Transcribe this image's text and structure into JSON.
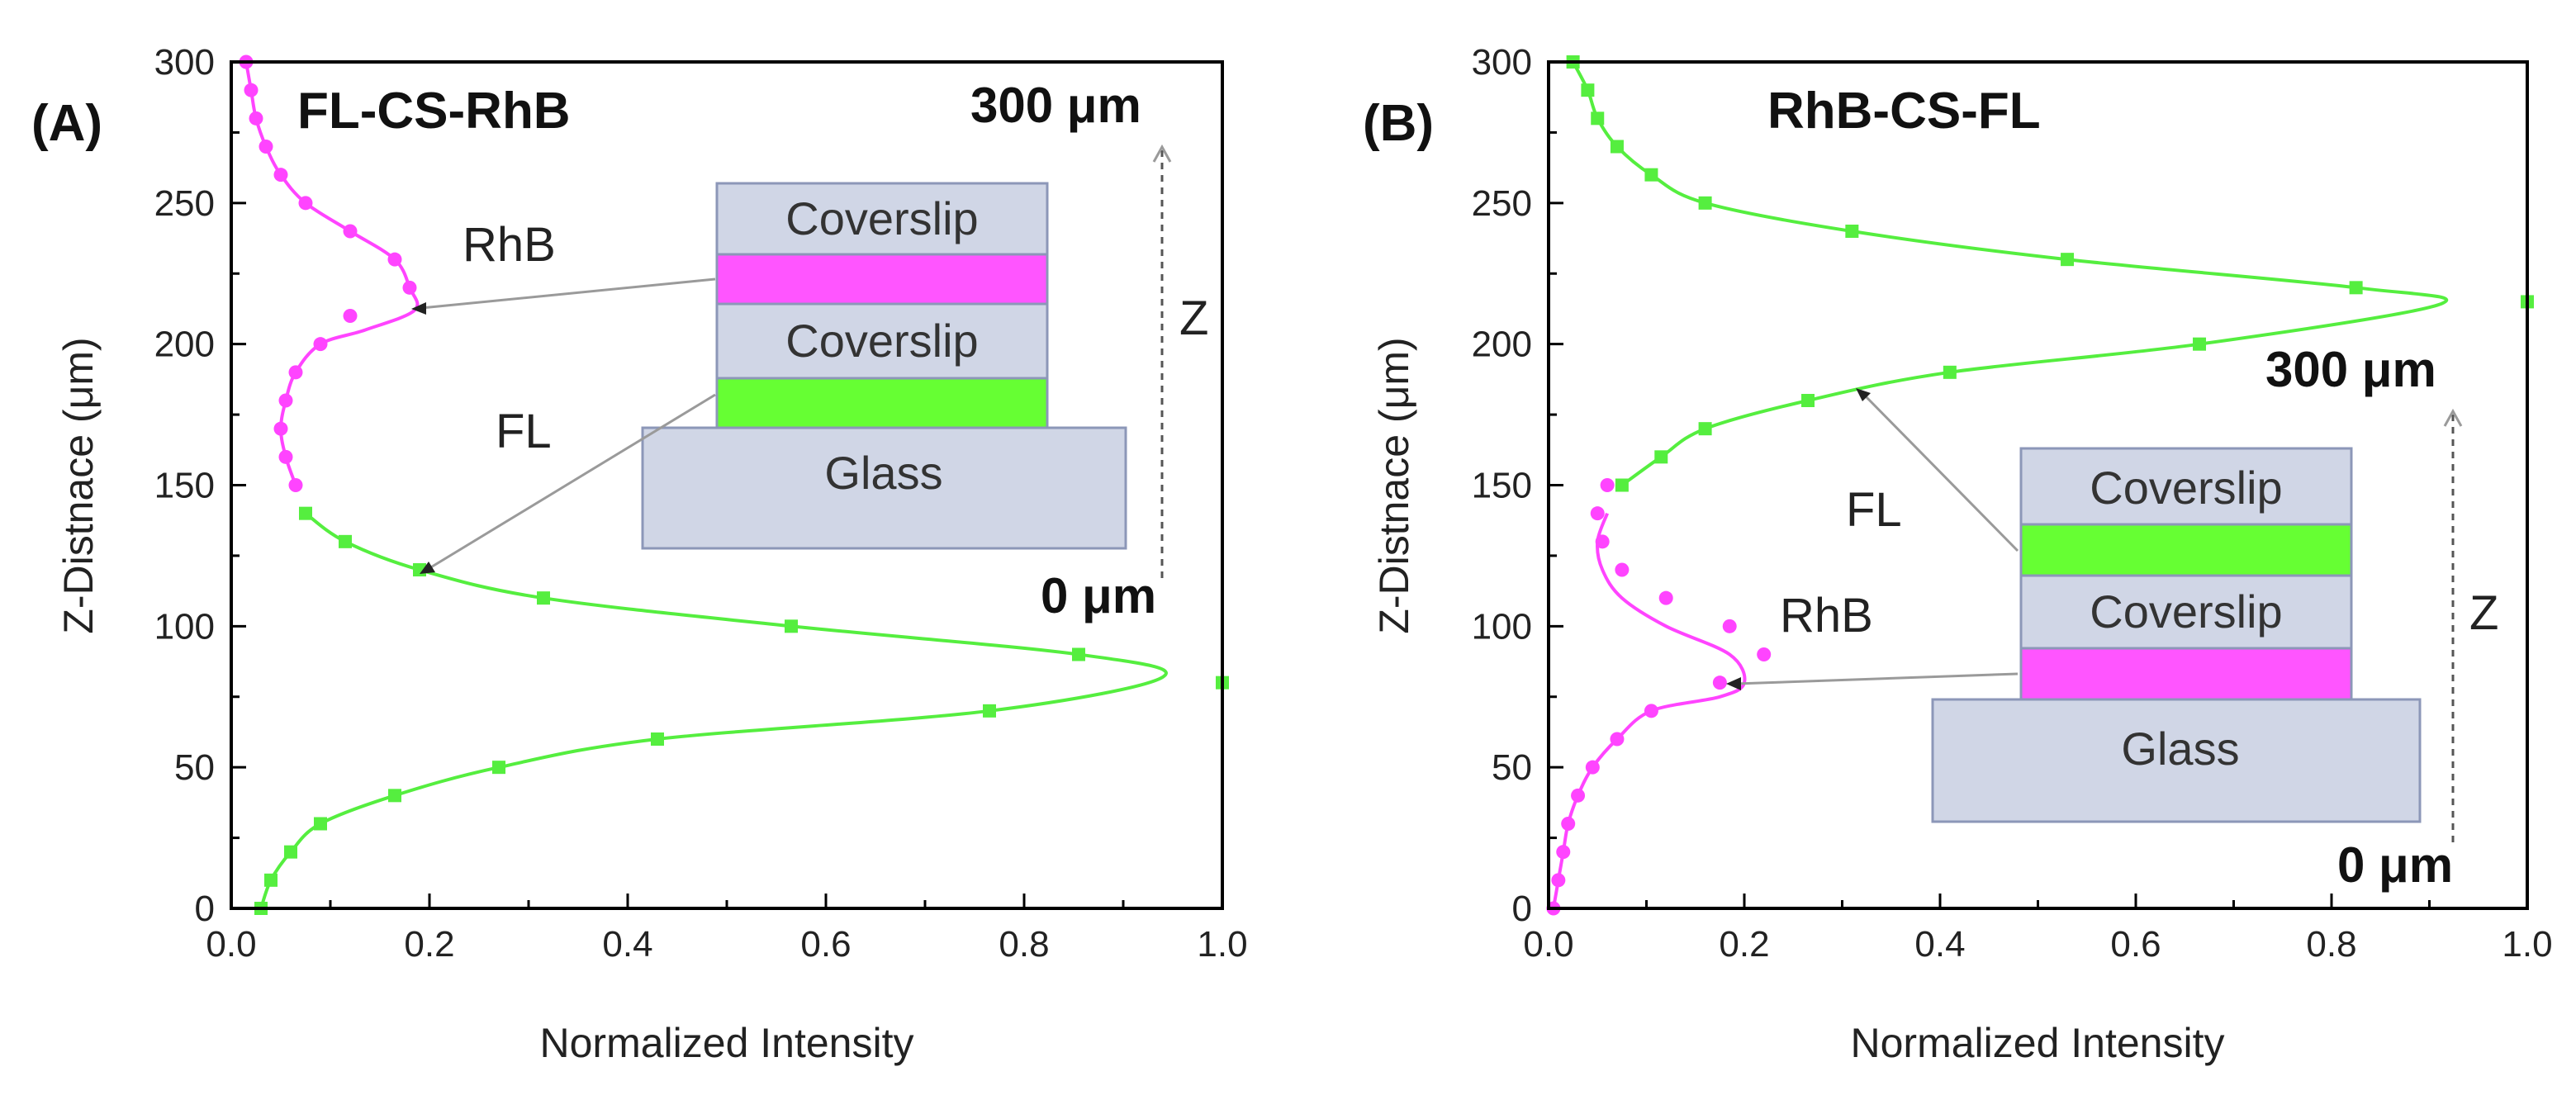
{
  "colors": {
    "fl": "#55ee3f",
    "rhb": "#ff44ff",
    "layer_fill": "#d0d6e6",
    "fl_layer": "#66ff33",
    "rhb_layer": "#ff55ff"
  },
  "chart_data": [
    {
      "type": "line",
      "panel_label": "(A)",
      "title": "FL-CS-RhB",
      "xlabel": "Normalized Intensity",
      "ylabel": "Z-Distnace (μm)",
      "xlim": [
        0,
        1
      ],
      "ylim": [
        0,
        300
      ],
      "xticks": [
        0,
        0.2,
        0.4,
        0.6,
        0.8,
        1.0
      ],
      "xtick_labels": [
        "0.0",
        "0.2",
        "0.4",
        "0.6",
        "0.8",
        "1.0"
      ],
      "yticks": [
        0,
        50,
        100,
        150,
        200,
        250,
        300
      ],
      "ytick_labels": [
        "0",
        "50",
        "100",
        "150",
        "200",
        "250",
        "300"
      ],
      "series": [
        {
          "name": "FL",
          "color": "#55ee3f",
          "marker": "square",
          "x": [
            0.03,
            0.04,
            0.06,
            0.09,
            0.165,
            0.27,
            0.43,
            0.765,
            1.0,
            0.855,
            0.565,
            0.315,
            0.19,
            0.115,
            0.075
          ],
          "y": [
            0,
            10,
            20,
            30,
            40,
            50,
            60,
            70,
            80,
            90,
            100,
            110,
            120,
            130,
            140
          ],
          "fit_x": [
            0.03,
            0.04,
            0.06,
            0.09,
            0.165,
            0.27,
            0.43,
            0.765,
            0.94,
            0.855,
            0.565,
            0.315,
            0.19,
            0.115,
            0.075
          ],
          "fit_y": [
            0,
            10,
            20,
            30,
            40,
            50,
            60,
            70,
            82,
            90,
            100,
            110,
            120,
            130,
            140
          ]
        },
        {
          "name": "RhB",
          "color": "#ff44ff",
          "marker": "circle",
          "x": [
            0.065,
            0.055,
            0.05,
            0.055,
            0.065,
            0.09,
            0.12,
            0.18,
            0.165,
            0.12,
            0.075,
            0.05,
            0.035,
            0.025,
            0.02,
            0.015
          ],
          "y": [
            150,
            160,
            170,
            180,
            190,
            200,
            210,
            220,
            230,
            240,
            250,
            260,
            270,
            280,
            290,
            300
          ],
          "fit_x": [
            0.065,
            0.055,
            0.05,
            0.055,
            0.065,
            0.09,
            0.135,
            0.185,
            0.18,
            0.165,
            0.12,
            0.075,
            0.05,
            0.035,
            0.025,
            0.02,
            0.015
          ],
          "fit_y": [
            150,
            160,
            170,
            180,
            190,
            200,
            205,
            212,
            220,
            230,
            240,
            250,
            260,
            270,
            280,
            290,
            300
          ]
        }
      ],
      "annotations": {
        "top_mark": "300 μm",
        "bottom_mark": "0 μm",
        "z_label": "Z",
        "rhb_label": "RhB",
        "fl_label": "FL",
        "layers": [
          "Coverslip",
          "",
          "Coverslip",
          "",
          "Glass"
        ]
      }
    },
    {
      "type": "line",
      "panel_label": "(B)",
      "title": "RhB-CS-FL",
      "xlabel": "Normalized Intensity",
      "ylabel": "Z-Distnace (μm)",
      "xlim": [
        0,
        1
      ],
      "ylim": [
        0,
        300
      ],
      "xticks": [
        0,
        0.2,
        0.4,
        0.6,
        0.8,
        1.0
      ],
      "xtick_labels": [
        "0.0",
        "0.2",
        "0.4",
        "0.6",
        "0.8",
        "1.0"
      ],
      "yticks": [
        0,
        50,
        100,
        150,
        200,
        250,
        300
      ],
      "ytick_labels": [
        "0",
        "50",
        "100",
        "150",
        "200",
        "250",
        "300"
      ],
      "series": [
        {
          "name": "RhB",
          "color": "#ff44ff",
          "marker": "circle",
          "x": [
            0.005,
            0.01,
            0.015,
            0.02,
            0.03,
            0.045,
            0.07,
            0.105,
            0.175,
            0.22,
            0.185,
            0.12,
            0.075,
            0.055,
            0.05,
            0.06
          ],
          "y": [
            0,
            10,
            20,
            30,
            40,
            50,
            60,
            70,
            80,
            90,
            100,
            110,
            120,
            130,
            140,
            150
          ],
          "fit_x": [
            0.005,
            0.01,
            0.015,
            0.02,
            0.03,
            0.045,
            0.07,
            0.105,
            0.175,
            0.2,
            0.185,
            0.12,
            0.075,
            0.055,
            0.05,
            0.06
          ],
          "fit_y": [
            0,
            10,
            20,
            30,
            40,
            50,
            60,
            70,
            75,
            80,
            90,
            100,
            110,
            120,
            130,
            140
          ]
        },
        {
          "name": "FL",
          "color": "#55ee3f",
          "marker": "square",
          "x": [
            0.075,
            0.115,
            0.16,
            0.265,
            0.41,
            0.665,
            1.0,
            0.825,
            0.53,
            0.31,
            0.16,
            0.105,
            0.07,
            0.05,
            0.04,
            0.025
          ],
          "y": [
            150,
            160,
            170,
            180,
            190,
            200,
            215,
            220,
            230,
            240,
            250,
            260,
            270,
            280,
            290,
            300
          ],
          "fit_x": [
            0.075,
            0.115,
            0.16,
            0.265,
            0.41,
            0.665,
            0.91,
            0.825,
            0.53,
            0.31,
            0.16,
            0.105,
            0.07,
            0.05,
            0.04,
            0.025
          ],
          "fit_y": [
            150,
            160,
            170,
            180,
            190,
            200,
            214,
            220,
            230,
            240,
            250,
            260,
            270,
            280,
            290,
            300
          ]
        }
      ],
      "annotations": {
        "top_mark": "300 μm",
        "bottom_mark": "0 μm",
        "z_label": "Z",
        "rhb_label": "RhB",
        "fl_label": "FL",
        "layers": [
          "Coverslip",
          "",
          "Coverslip",
          "",
          "Glass"
        ]
      }
    }
  ]
}
